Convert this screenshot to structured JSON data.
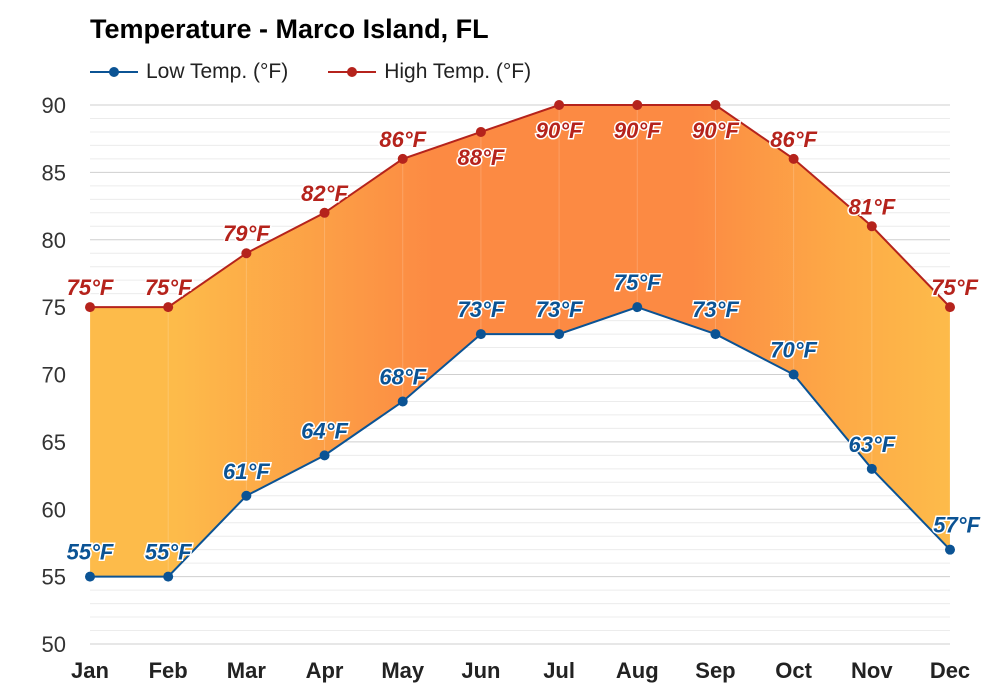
{
  "chart_data": {
    "type": "line",
    "title": "Temperature - Marco Island, FL",
    "categories": [
      "Jan",
      "Feb",
      "Mar",
      "Apr",
      "May",
      "Jun",
      "Jul",
      "Aug",
      "Sep",
      "Oct",
      "Nov",
      "Dec"
    ],
    "series": [
      {
        "name": "Low Temp. (°F)",
        "values": [
          55,
          55,
          61,
          64,
          68,
          73,
          73,
          75,
          73,
          70,
          63,
          57
        ],
        "labels": [
          "55°F",
          "55°F",
          "61°F",
          "64°F",
          "68°F",
          "73°F",
          "73°F",
          "75°F",
          "73°F",
          "70°F",
          "63°F",
          "57°F"
        ],
        "color": "#0b5394"
      },
      {
        "name": "High Temp. (°F)",
        "values": [
          75,
          75,
          79,
          82,
          86,
          88,
          90,
          90,
          90,
          86,
          81,
          75
        ],
        "labels": [
          "75°F",
          "75°F",
          "79°F",
          "82°F",
          "86°F",
          "88°F",
          "90°F",
          "90°F",
          "90°F",
          "86°F",
          "81°F",
          "75°F"
        ],
        "color": "#b5231c"
      }
    ],
    "ylim": [
      50,
      90
    ],
    "yticks": [
      "50",
      "55",
      "60",
      "65",
      "70",
      "75",
      "80",
      "85",
      "90"
    ],
    "xlabel": "",
    "ylabel": "",
    "grid": true,
    "legend_position": "top-left",
    "fill_colors": {
      "cool": "#fdbb4a",
      "warm": "#fc8a43"
    }
  }
}
